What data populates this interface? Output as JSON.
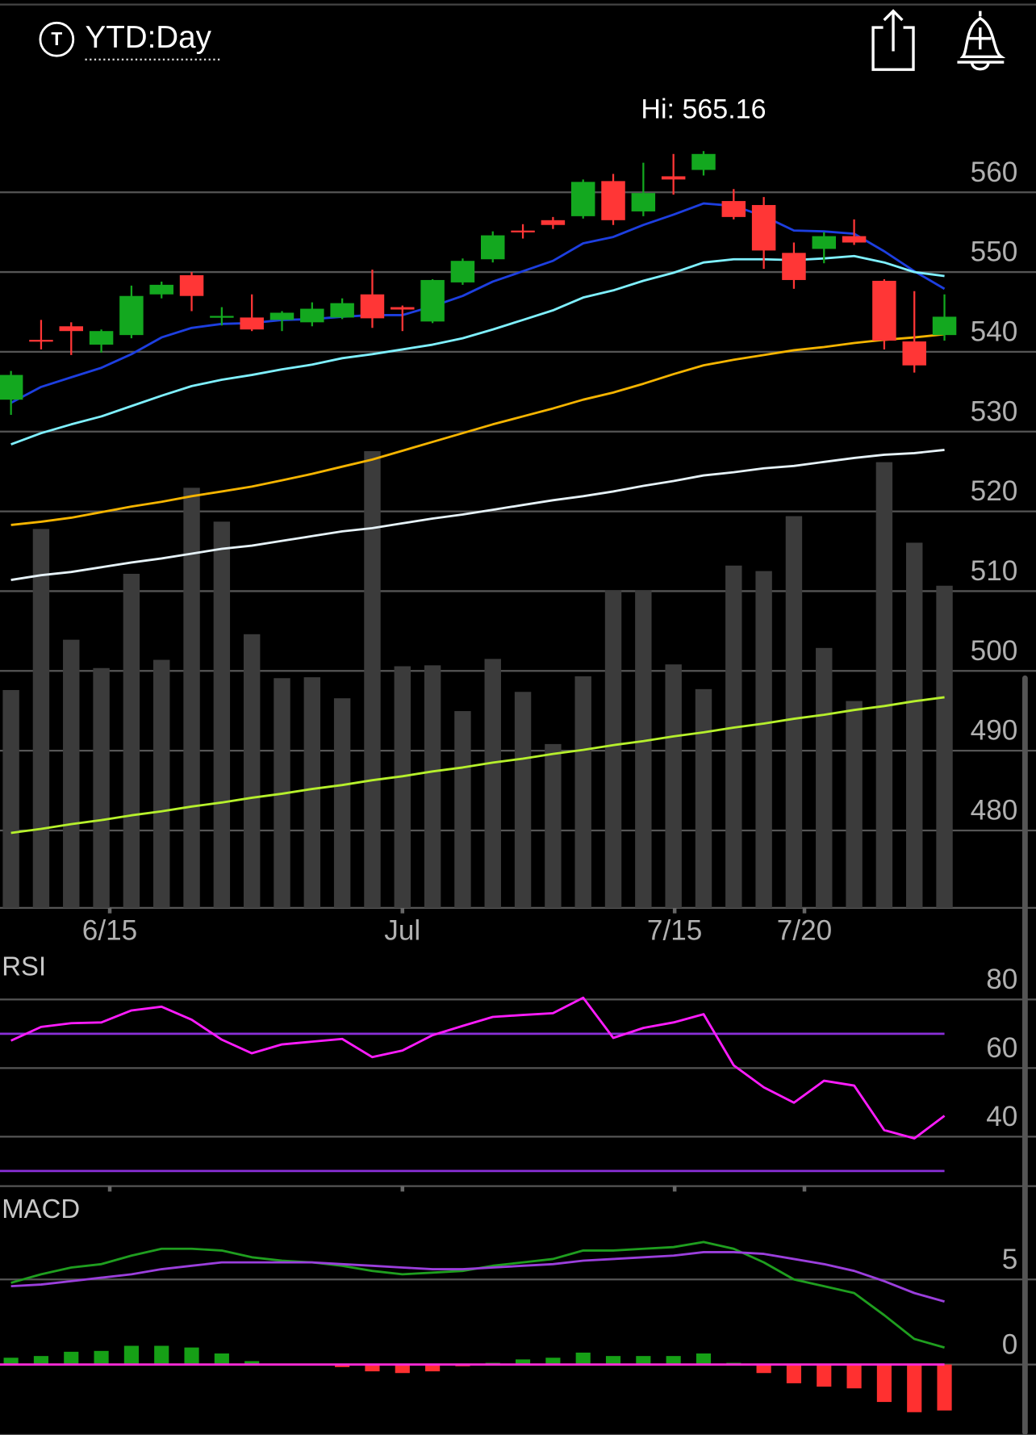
{
  "header": {
    "icon_letter": "T",
    "range": "YTD:Day"
  },
  "chart_data": [
    {
      "type": "candlestick",
      "annotation": "Hi: 565.16",
      "up_color": "#13a81f",
      "down_color": "#ff3636",
      "volume_color": "#3b3b3b",
      "grid": true,
      "grid_color": "#555555",
      "open": [
        534.0,
        541.5,
        543.2,
        540.9,
        542.1,
        547.2,
        549.6,
        544.3,
        544.3,
        544.0,
        543.7,
        544.3,
        547.2,
        545.6,
        543.8,
        548.7,
        551.6,
        555.2,
        556.5,
        557.0,
        561.4,
        557.6,
        562.0,
        562.8,
        558.9,
        558.4,
        552.4,
        552.9,
        554.5,
        548.9,
        541.3,
        542.1
      ],
      "high": [
        537.6,
        544.0,
        543.7,
        542.8,
        548.3,
        548.8,
        550.0,
        545.6,
        547.2,
        545.1,
        546.2,
        546.7,
        550.3,
        545.8,
        549.1,
        551.7,
        555.1,
        556.0,
        556.9,
        561.6,
        562.3,
        563.7,
        564.8,
        565.16,
        560.4,
        559.4,
        553.7,
        555.0,
        556.6,
        549.1,
        547.6,
        547.2
      ],
      "low": [
        532.1,
        540.3,
        539.6,
        539.9,
        541.7,
        546.7,
        545.1,
        543.3,
        542.6,
        542.6,
        543.2,
        544.1,
        543.0,
        542.6,
        543.6,
        548.4,
        551.2,
        554.2,
        555.4,
        556.7,
        555.9,
        557.0,
        559.7,
        562.1,
        556.6,
        550.4,
        547.9,
        551.1,
        553.4,
        540.3,
        537.4,
        541.4
      ],
      "close": [
        537.1,
        541.3,
        542.6,
        542.6,
        547.0,
        548.4,
        547.0,
        544.5,
        542.8,
        544.9,
        545.4,
        546.1,
        544.2,
        545.3,
        549.0,
        551.4,
        554.6,
        555.0,
        555.9,
        561.3,
        556.5,
        559.9,
        561.6,
        564.8,
        556.9,
        552.7,
        549.0,
        554.5,
        553.7,
        541.4,
        538.3,
        544.4
      ],
      "volume": [
        238,
        414,
        293,
        262,
        365,
        271,
        459,
        422,
        299,
        251,
        252,
        229,
        499,
        264,
        265,
        215,
        272,
        236,
        179,
        253,
        347,
        347,
        266,
        239,
        374,
        368,
        428,
        284,
        226,
        487,
        399,
        352
      ],
      "volume_lim": [
        0,
        992
      ],
      "series": [
        {
          "color": "#1d3fe0",
          "values": [
            533.6,
            535.6,
            536.8,
            538.0,
            539.7,
            541.8,
            543.0,
            543.5,
            543.6,
            544.0,
            544.1,
            544.4,
            544.6,
            544.6,
            545.7,
            547.0,
            548.8,
            550.1,
            551.4,
            553.6,
            554.4,
            555.9,
            557.2,
            558.6,
            558.3,
            557.0,
            555.2,
            555.1,
            554.8,
            552.6,
            550.1,
            547.9
          ]
        },
        {
          "color": "#7ff0ff",
          "values": [
            528.4,
            529.8,
            530.9,
            531.9,
            533.2,
            534.5,
            535.7,
            536.5,
            537.1,
            537.8,
            538.4,
            539.2,
            539.7,
            540.3,
            540.9,
            541.7,
            542.8,
            544.0,
            545.2,
            546.8,
            547.7,
            548.9,
            549.9,
            551.2,
            551.6,
            551.6,
            551.5,
            551.7,
            552.0,
            551.2,
            550.0,
            549.5
          ]
        },
        {
          "color": "#f5b400",
          "values": [
            518.3,
            518.7,
            519.2,
            519.9,
            520.6,
            521.2,
            521.9,
            522.5,
            523.1,
            523.9,
            524.7,
            525.6,
            526.5,
            527.6,
            528.7,
            529.8,
            530.9,
            531.9,
            532.9,
            534.0,
            534.9,
            536.0,
            537.2,
            538.3,
            539.0,
            539.6,
            540.2,
            540.6,
            541.1,
            541.5,
            541.8,
            542.2
          ]
        },
        {
          "color": "#e6f2f8",
          "values": [
            511.4,
            512.0,
            512.4,
            513.0,
            513.6,
            514.1,
            514.7,
            515.3,
            515.7,
            516.3,
            516.9,
            517.5,
            517.9,
            518.5,
            519.1,
            519.6,
            520.2,
            520.8,
            521.4,
            521.9,
            522.5,
            523.2,
            523.8,
            524.5,
            524.9,
            525.4,
            525.7,
            526.2,
            526.7,
            527.1,
            527.3,
            527.7
          ]
        },
        {
          "color": "#b6f02c",
          "values": [
            479.7,
            480.2,
            480.8,
            481.3,
            481.9,
            482.4,
            483.0,
            483.5,
            484.1,
            484.6,
            485.2,
            485.7,
            486.3,
            486.8,
            487.4,
            487.9,
            488.5,
            489.0,
            489.6,
            490.1,
            490.7,
            491.2,
            491.8,
            492.3,
            492.9,
            493.4,
            494.0,
            494.5,
            495.1,
            495.6,
            496.2,
            496.7
          ]
        }
      ],
      "xlim": [
        -0.365,
        34.04
      ],
      "xticks": [
        {
          "value": 3.28,
          "label": "6/15"
        },
        {
          "value": 13,
          "label": "Jul"
        },
        {
          "value": 22.04,
          "label": "7/15"
        },
        {
          "value": 26.35,
          "label": "7/20"
        }
      ],
      "ylim": [
        470.3,
        584.1
      ],
      "yticks": [
        480,
        490,
        500,
        510,
        520,
        530,
        540,
        550,
        560
      ]
    },
    {
      "type": "line",
      "title": "RSI",
      "grid": true,
      "grid_color": "#555555",
      "series": [
        {
          "color": "#ff1cff",
          "values": [
            68.0,
            72.0,
            73.1,
            73.3,
            76.8,
            77.9,
            74.1,
            68.3,
            64.3,
            66.9,
            67.7,
            68.5,
            63.2,
            65.1,
            69.6,
            72.3,
            74.9,
            75.5,
            76.0,
            80.5,
            68.8,
            71.7,
            73.3,
            75.7,
            60.8,
            54.4,
            49.9,
            56.3,
            54.9,
            41.9,
            39.5,
            46.1
          ]
        }
      ],
      "reference_lines": [
        70,
        30
      ],
      "reference_color": "#8a2fd8",
      "ylim": [
        25.6,
        93.9
      ],
      "yticks": [
        40,
        60,
        80
      ]
    },
    {
      "type": "macd",
      "title": "MACD",
      "grid": true,
      "grid_color": "#555555",
      "series": [
        {
          "color": "#1f9e1f",
          "values": [
            4.8,
            5.3,
            5.7,
            5.9,
            6.4,
            6.8,
            6.8,
            6.7,
            6.3,
            6.1,
            6.0,
            5.8,
            5.5,
            5.3,
            5.4,
            5.5,
            5.8,
            6.0,
            6.2,
            6.7,
            6.7,
            6.8,
            6.9,
            7.2,
            6.8,
            6.0,
            5.0,
            4.6,
            4.2,
            2.9,
            1.5,
            1.0
          ]
        },
        {
          "color": "#9b3fdc",
          "values": [
            4.6,
            4.7,
            4.9,
            5.1,
            5.3,
            5.6,
            5.8,
            6.0,
            6.0,
            6.0,
            6.0,
            5.9,
            5.8,
            5.7,
            5.6,
            5.6,
            5.7,
            5.8,
            5.9,
            6.1,
            6.2,
            6.3,
            6.4,
            6.6,
            6.6,
            6.5,
            6.2,
            5.9,
            5.5,
            4.9,
            4.2,
            3.7
          ]
        }
      ],
      "histogram": [
        0.4,
        0.5,
        0.75,
        0.8,
        1.1,
        1.1,
        1.0,
        0.65,
        0.2,
        0,
        0,
        -0.15,
        -0.4,
        -0.5,
        -0.4,
        -0.1,
        0.1,
        0.3,
        0.4,
        0.7,
        0.5,
        0.5,
        0.5,
        0.65,
        0.1,
        -0.5,
        -1.1,
        -1.3,
        -1.4,
        -2.2,
        -2.8,
        -2.7
      ],
      "histogram_up_color": "#16a016",
      "histogram_down_color": "#ff3030",
      "zero_line_color": "#ff2bd6",
      "ylim": [
        -4.14,
        10
      ],
      "yticks": [
        0,
        5
      ]
    }
  ]
}
